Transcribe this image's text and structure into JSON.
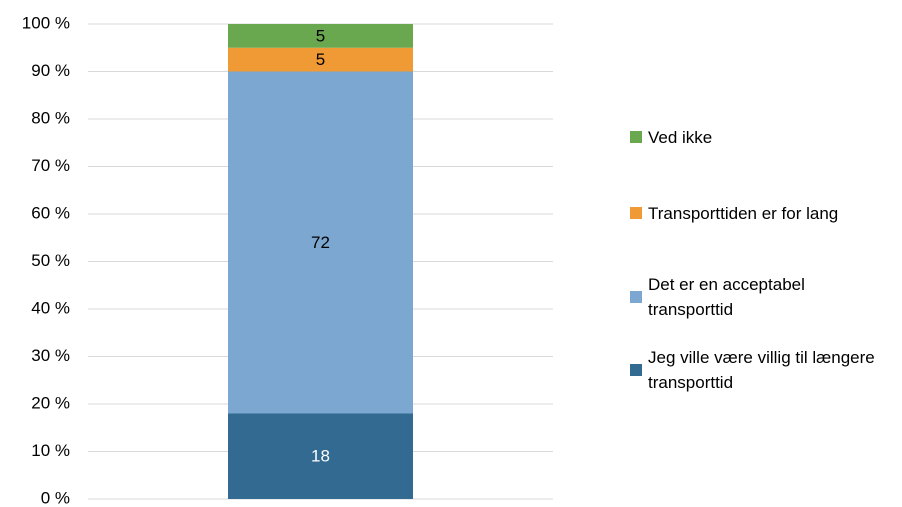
{
  "chart_data": {
    "type": "stacked-bar",
    "categories": [
      null
    ],
    "series": [
      {
        "name": "Jeg ville være villig til længere transporttid",
        "color": "#336a91",
        "values": [
          18
        ]
      },
      {
        "name": "Det er en acceptabel transporttid",
        "color": "#7ba7d0",
        "values": [
          72
        ]
      },
      {
        "name": "Transporttiden er for lang",
        "color": "#f09a35",
        "values": [
          5
        ]
      },
      {
        "name": "Ved ikke",
        "color": "#6aa84f",
        "values": [
          5
        ]
      }
    ],
    "ylim": [
      0,
      100
    ],
    "yticks": [
      {
        "value": 0,
        "label": "0 %"
      },
      {
        "value": 10,
        "label": "10 %"
      },
      {
        "value": 20,
        "label": "20 %"
      },
      {
        "value": 30,
        "label": "30 %"
      },
      {
        "value": 40,
        "label": "40 %"
      },
      {
        "value": 50,
        "label": "50 %"
      },
      {
        "value": 60,
        "label": "60 %"
      },
      {
        "value": 70,
        "label": "70 %"
      },
      {
        "value": 80,
        "label": "80 %"
      },
      {
        "value": 90,
        "label": "90 %"
      },
      {
        "value": 100,
        "label": "100 %"
      }
    ],
    "grid": true,
    "legend": "right"
  }
}
